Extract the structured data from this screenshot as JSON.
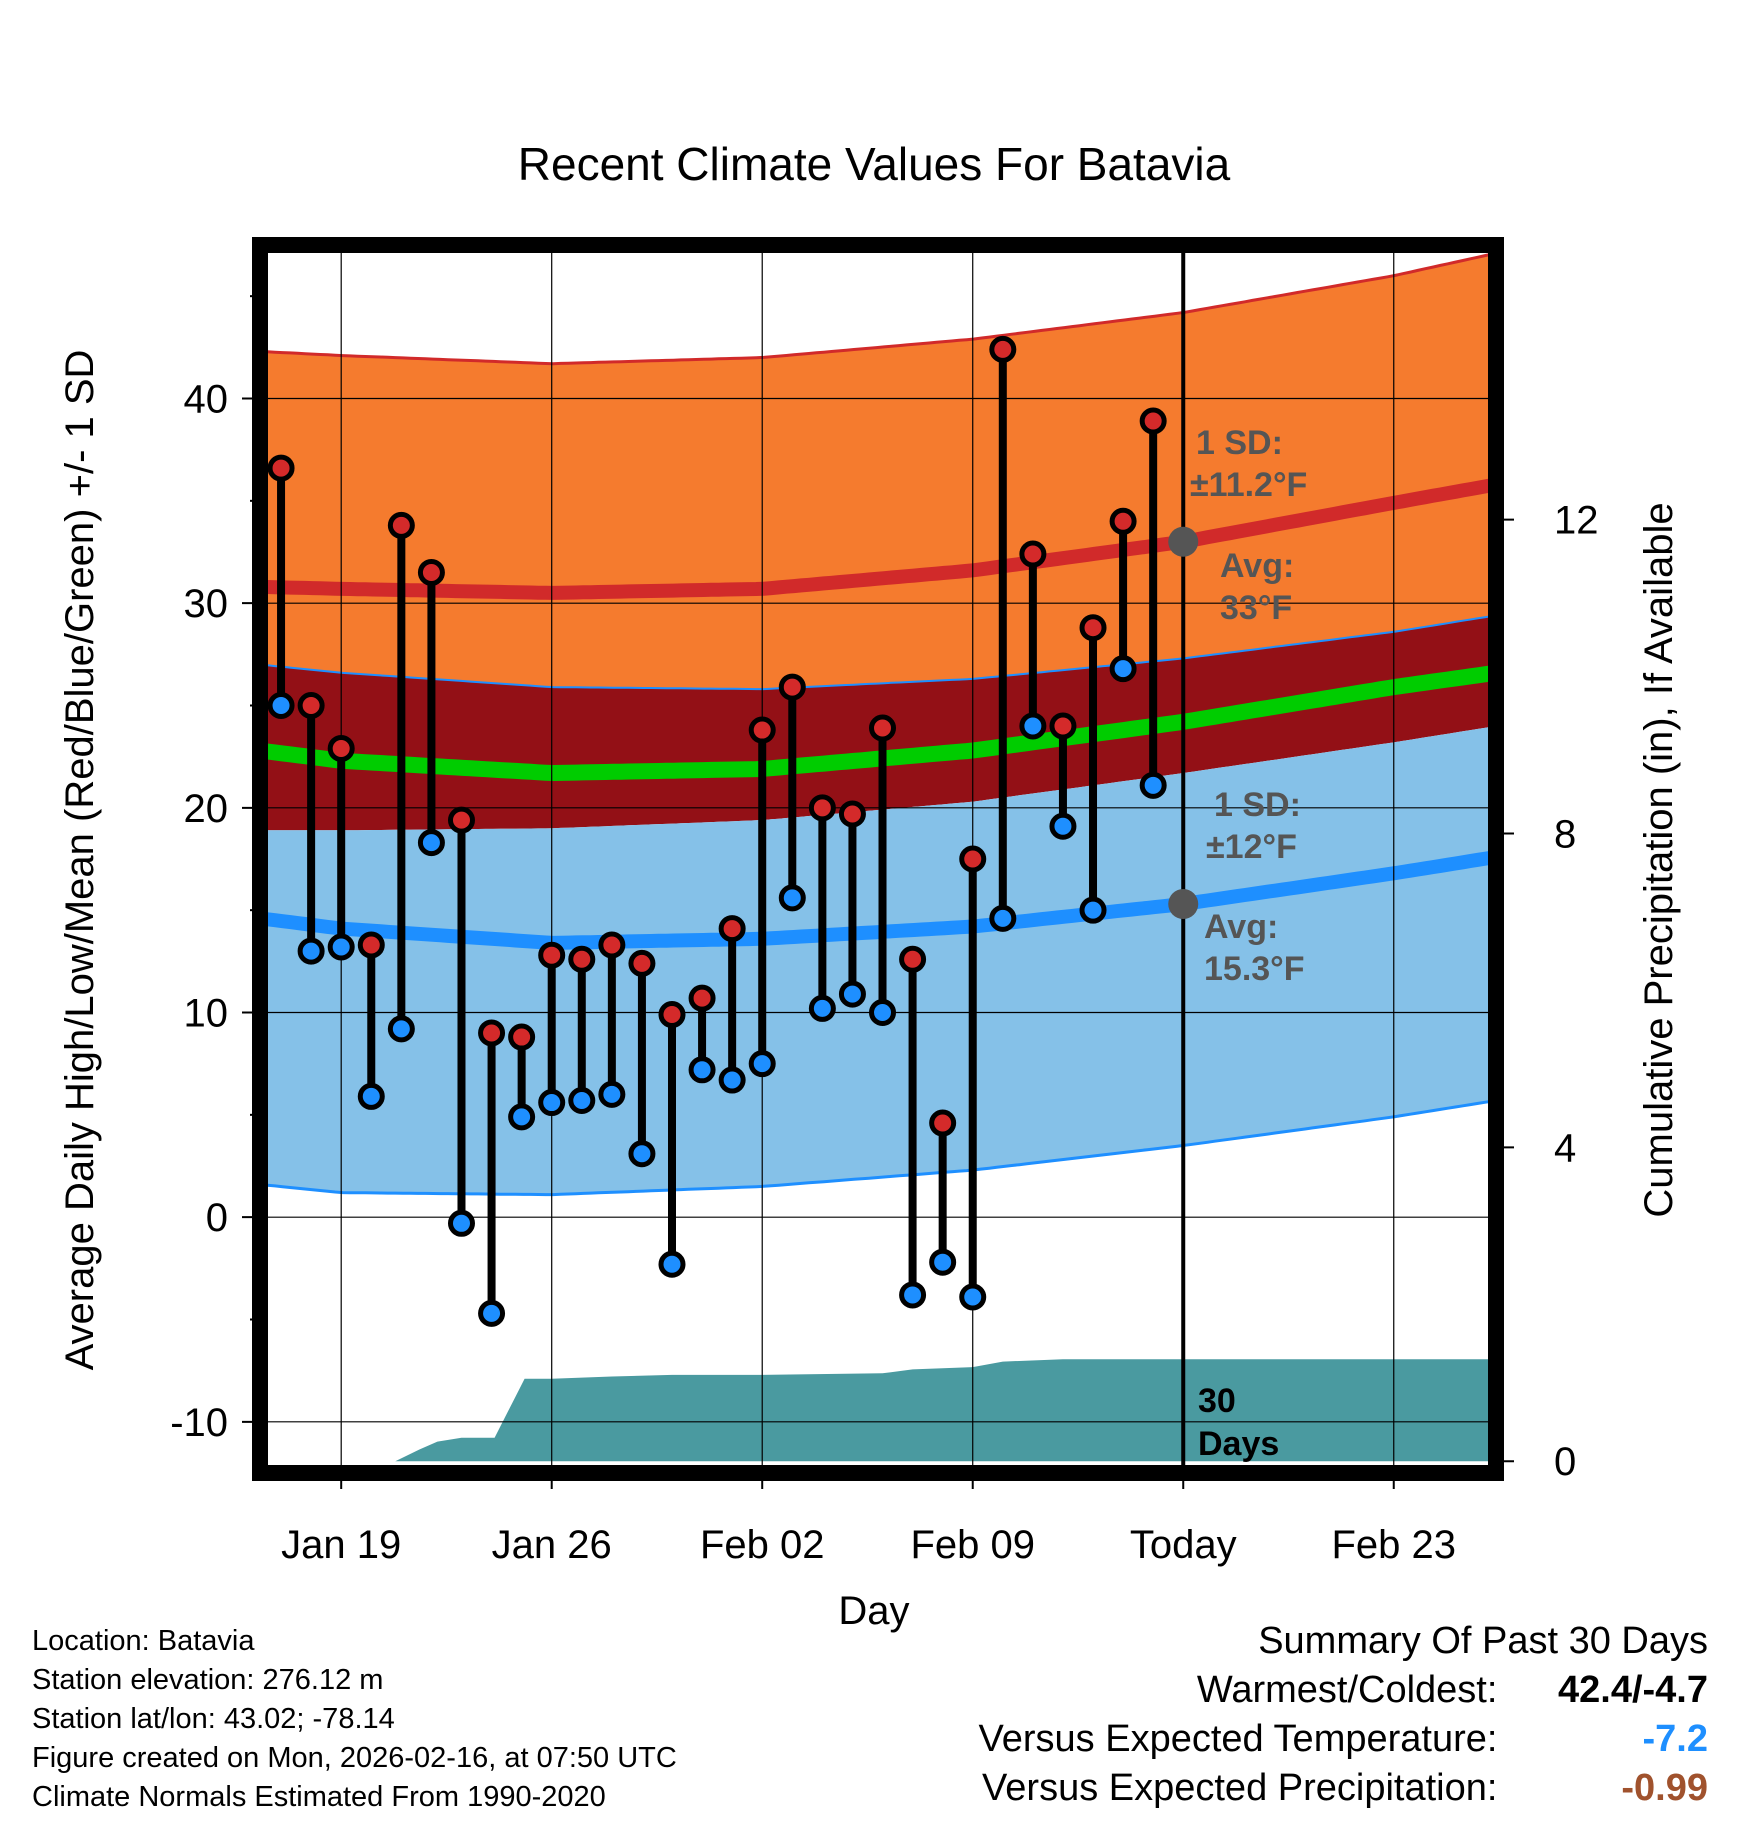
{
  "chart_data": {
    "type": "line",
    "title": "Recent Climate Values For Batavia",
    "xlabel": "Day",
    "ylabel": "Average Daily High/Low/Mean (Red/Blue/Green) +/- 1 SD",
    "y2label": "Cumulative Precipitation (in), If Available",
    "ylim": [
      -12.5,
      47.5
    ],
    "y2lim": [
      -0.15,
      15.5
    ],
    "xlim": [
      -2.7,
      38.4
    ],
    "x_ticks": [
      {
        "day": 0,
        "label": "Jan 19"
      },
      {
        "day": 7,
        "label": "Jan 26"
      },
      {
        "day": 14,
        "label": "Feb 02"
      },
      {
        "day": 21,
        "label": "Feb 09"
      },
      {
        "day": 28,
        "label": "Today"
      },
      {
        "day": 35,
        "label": "Feb 23"
      }
    ],
    "y_ticks": [
      -10,
      0,
      10,
      20,
      30,
      40
    ],
    "y2_ticks": [
      0,
      4,
      8,
      12
    ],
    "today_day": 28,
    "normals": {
      "days": [
        -2.7,
        0,
        7,
        14,
        21,
        28,
        35,
        38.4
      ],
      "high_plus_sd": [
        42.3,
        42.1,
        41.7,
        42.0,
        42.9,
        44.2,
        46.0,
        47.1
      ],
      "high_avg": [
        30.8,
        30.7,
        30.5,
        30.7,
        31.6,
        33.0,
        34.9,
        35.8
      ],
      "high_minus_sd": [
        27.0,
        26.6,
        25.9,
        25.8,
        26.3,
        27.3,
        28.6,
        29.4
      ],
      "mean_avg": [
        22.8,
        22.3,
        21.7,
        21.9,
        22.8,
        24.2,
        25.9,
        26.6
      ],
      "low_plus_sd": [
        18.9,
        18.9,
        19.0,
        19.4,
        20.3,
        21.7,
        23.2,
        24.0
      ],
      "low_avg": [
        14.6,
        14.1,
        13.4,
        13.6,
        14.2,
        15.3,
        16.8,
        17.6
      ],
      "low_minus_sd": [
        1.6,
        1.2,
        1.1,
        1.5,
        2.3,
        3.5,
        4.9,
        5.7
      ]
    },
    "observations": {
      "days": [
        -2,
        -1,
        0,
        1,
        2,
        3,
        4,
        5,
        6,
        7,
        8,
        9,
        10,
        11,
        12,
        13,
        14,
        15,
        16,
        17,
        18,
        19,
        20,
        21,
        22,
        23,
        24,
        25,
        26,
        27
      ],
      "high": [
        36.6,
        25.0,
        22.9,
        13.3,
        33.8,
        31.5,
        19.4,
        9.0,
        8.8,
        12.8,
        12.6,
        13.3,
        12.4,
        9.9,
        10.7,
        14.1,
        23.8,
        25.9,
        20.0,
        19.7,
        23.9,
        12.6,
        4.6,
        17.5,
        42.4,
        32.4,
        24.0,
        28.8,
        34.0,
        38.9
      ],
      "low": [
        25.0,
        13.0,
        13.2,
        5.9,
        9.2,
        18.3,
        -0.3,
        -4.7,
        4.9,
        5.6,
        5.7,
        6.0,
        3.1,
        -2.3,
        7.2,
        6.7,
        7.5,
        15.6,
        10.2,
        10.9,
        10.0,
        -3.8,
        -2.2,
        -3.9,
        14.6,
        24.0,
        19.1,
        15.0,
        26.8,
        21.1
      ]
    },
    "precip_cumulative": {
      "days": [
        -2.7,
        0.5,
        1.8,
        2.6,
        3.2,
        4.0,
        5.0,
        5.1,
        6.1,
        7.0,
        9.0,
        11.0,
        14.0,
        18.0,
        19.0,
        21.0,
        22.0,
        24.0,
        28.0,
        38.4
      ],
      "inches": [
        0,
        0,
        0,
        0.15,
        0.25,
        0.3,
        0.3,
        0.3,
        1.05,
        1.05,
        1.08,
        1.1,
        1.1,
        1.12,
        1.17,
        1.2,
        1.27,
        1.3,
        1.3,
        1.3
      ]
    },
    "annotations": {
      "high_sd_label": "1 SD:",
      "high_sd_value": "±11.2°F",
      "high_avg_label": "Avg:",
      "high_avg_value": "33°F",
      "low_sd_label": "1 SD:",
      "low_sd_value": "±12°F",
      "low_avg_label": "Avg:",
      "low_avg_value": "15.3°F",
      "period_number": "30",
      "period_unit": "Days"
    },
    "colors": {
      "high_band": "#f57b2e",
      "high_line": "#d12a2a",
      "mean_band": "#931016",
      "mean_line": "#00cc00",
      "low_band": "#85c1e8",
      "low_line": "#1e8fff",
      "precip": "#4a9aa0",
      "high_dot": "#d42a2a",
      "low_dot": "#1e8fff",
      "annot": "#555555"
    }
  },
  "info": {
    "location": "Location: Batavia",
    "elevation": "Station elevation: 276.12 m",
    "latlon": "Station lat/lon: 43.02; -78.14",
    "created": "Figure created on Mon, 2026-02-16, at 07:50 UTC",
    "normals": "Climate Normals Estimated From 1990-2020"
  },
  "summary": {
    "heading": "Summary Of Past 30 Days",
    "warmest_label": "Warmest/Coldest:",
    "warmest_value": "42.4/-4.7",
    "temp_label": "Versus Expected Temperature:",
    "temp_value": "-7.2",
    "temp_color": "#1e8fff",
    "precip_label": "Versus Expected Precipitation:",
    "precip_value": "-0.99",
    "precip_color": "#a0522d"
  }
}
